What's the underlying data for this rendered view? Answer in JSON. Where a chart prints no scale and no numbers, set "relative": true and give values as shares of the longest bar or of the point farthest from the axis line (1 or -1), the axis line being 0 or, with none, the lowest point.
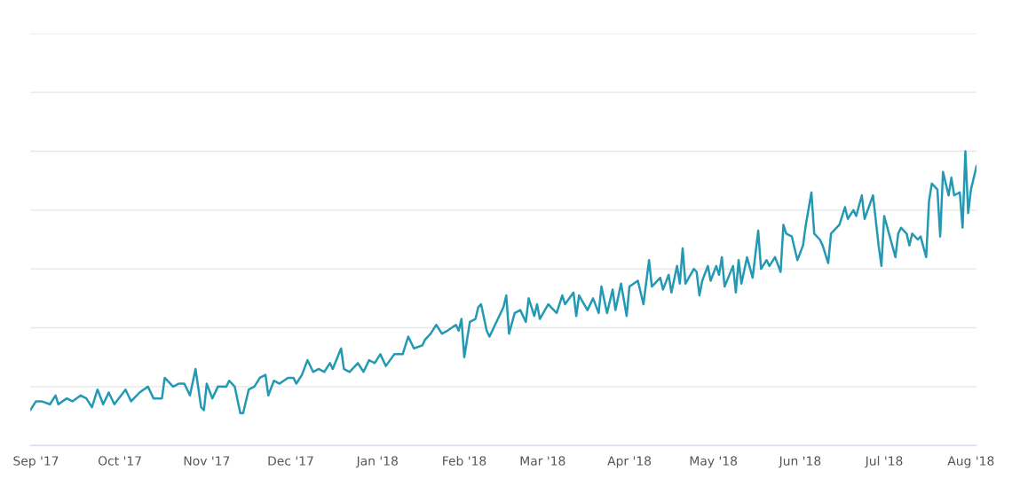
{
  "chart_data": {
    "type": "line",
    "relative": true,
    "grid": "y",
    "marker": "none",
    "line_style": "solid",
    "xlim": [
      "2017-08-30",
      "2018-08-03"
    ],
    "xticks": [
      {
        "value": "2017-09-01",
        "label": "Sep '17"
      },
      {
        "value": "2017-10-01",
        "label": "Oct '17"
      },
      {
        "value": "2017-11-01",
        "label": "Nov '17"
      },
      {
        "value": "2017-12-01",
        "label": "Dec '17"
      },
      {
        "value": "2018-01-01",
        "label": "Jan '18"
      },
      {
        "value": "2018-02-01",
        "label": "Feb '18"
      },
      {
        "value": "2018-03-01",
        "label": "Mar '18"
      },
      {
        "value": "2018-04-01",
        "label": "Apr '18"
      },
      {
        "value": "2018-05-01",
        "label": "May '18"
      },
      {
        "value": "2018-06-01",
        "label": "Jun '18"
      },
      {
        "value": "2018-07-01",
        "label": "Jul '18"
      },
      {
        "value": "2018-08-01",
        "label": "Aug '18"
      }
    ],
    "series": [
      {
        "color": "#2399b3",
        "x": [
          "2017-08-30",
          "2017-09-01",
          "2017-09-03",
          "2017-09-06",
          "2017-09-08",
          "2017-09-09",
          "2017-09-12",
          "2017-09-14",
          "2017-09-17",
          "2017-09-19",
          "2017-09-21",
          "2017-09-23",
          "2017-09-25",
          "2017-09-27",
          "2017-09-29",
          "2017-10-03",
          "2017-10-05",
          "2017-10-08",
          "2017-10-11",
          "2017-10-13",
          "2017-10-16",
          "2017-10-17",
          "2017-10-20",
          "2017-10-22",
          "2017-10-24",
          "2017-10-26",
          "2017-10-28",
          "2017-10-30",
          "2017-10-31",
          "2017-11-01",
          "2017-11-03",
          "2017-11-05",
          "2017-11-08",
          "2017-11-09",
          "2017-11-11",
          "2017-11-13",
          "2017-11-14",
          "2017-11-16",
          "2017-11-18",
          "2017-11-20",
          "2017-11-22",
          "2017-11-23",
          "2017-11-25",
          "2017-11-27",
          "2017-11-30",
          "2017-12-02",
          "2017-12-03",
          "2017-12-05",
          "2017-12-07",
          "2017-12-09",
          "2017-12-11",
          "2017-12-13",
          "2017-12-15",
          "2017-12-16",
          "2017-12-19",
          "2017-12-20",
          "2017-12-22",
          "2017-12-25",
          "2017-12-27",
          "2017-12-29",
          "2017-12-31",
          "2018-01-02",
          "2018-01-04",
          "2018-01-07",
          "2018-01-10",
          "2018-01-12",
          "2018-01-14",
          "2018-01-17",
          "2018-01-18",
          "2018-01-20",
          "2018-01-22",
          "2018-01-24",
          "2018-01-26",
          "2018-01-29",
          "2018-01-30",
          "2018-01-31",
          "2018-02-01",
          "2018-02-03",
          "2018-02-05",
          "2018-02-06",
          "2018-02-07",
          "2018-02-09",
          "2018-02-10",
          "2018-02-12",
          "2018-02-15",
          "2018-02-16",
          "2018-02-17",
          "2018-02-19",
          "2018-02-21",
          "2018-02-23",
          "2018-02-24",
          "2018-02-26",
          "2018-02-27",
          "2018-02-28",
          "2018-03-03",
          "2018-03-04",
          "2018-03-06",
          "2018-03-08",
          "2018-03-09",
          "2018-03-12",
          "2018-03-13",
          "2018-03-14",
          "2018-03-17",
          "2018-03-19",
          "2018-03-21",
          "2018-03-22",
          "2018-03-24",
          "2018-03-26",
          "2018-03-27",
          "2018-03-29",
          "2018-03-31",
          "2018-04-01",
          "2018-04-04",
          "2018-04-05",
          "2018-04-06",
          "2018-04-08",
          "2018-04-09",
          "2018-04-12",
          "2018-04-13",
          "2018-04-15",
          "2018-04-16",
          "2018-04-18",
          "2018-04-19",
          "2018-04-20",
          "2018-04-21",
          "2018-04-24",
          "2018-04-25",
          "2018-04-26",
          "2018-04-27",
          "2018-04-29",
          "2018-04-30",
          "2018-05-02",
          "2018-05-03",
          "2018-05-04",
          "2018-05-05",
          "2018-05-08",
          "2018-05-09",
          "2018-05-10",
          "2018-05-11",
          "2018-05-13",
          "2018-05-15",
          "2018-05-17",
          "2018-05-18",
          "2018-05-20",
          "2018-05-21",
          "2018-05-23",
          "2018-05-25",
          "2018-05-26",
          "2018-05-27",
          "2018-05-29",
          "2018-05-31",
          "2018-06-02",
          "2018-06-03",
          "2018-06-05",
          "2018-06-06",
          "2018-06-08",
          "2018-06-09",
          "2018-06-11",
          "2018-06-12",
          "2018-06-14",
          "2018-06-15",
          "2018-06-17",
          "2018-06-18",
          "2018-06-20",
          "2018-06-21",
          "2018-06-23",
          "2018-06-24",
          "2018-06-27",
          "2018-06-29",
          "2018-06-30",
          "2018-07-01",
          "2018-07-03",
          "2018-07-05",
          "2018-07-06",
          "2018-07-07",
          "2018-07-09",
          "2018-07-10",
          "2018-07-11",
          "2018-07-13",
          "2018-07-14",
          "2018-07-16",
          "2018-07-17",
          "2018-07-18",
          "2018-07-20",
          "2018-07-21",
          "2018-07-22",
          "2018-07-24",
          "2018-07-25",
          "2018-07-26",
          "2018-07-28",
          "2018-07-29",
          "2018-07-30",
          "2018-07-31",
          "2018-08-01",
          "2018-08-03"
        ],
        "values": [
          0.12,
          0.15,
          0.15,
          0.14,
          0.17,
          0.14,
          0.16,
          0.15,
          0.17,
          0.16,
          0.13,
          0.19,
          0.14,
          0.18,
          0.14,
          0.19,
          0.15,
          0.18,
          0.2,
          0.16,
          0.16,
          0.23,
          0.2,
          0.21,
          0.21,
          0.17,
          0.26,
          0.13,
          0.12,
          0.21,
          0.16,
          0.2,
          0.2,
          0.22,
          0.2,
          0.11,
          0.11,
          0.19,
          0.2,
          0.23,
          0.24,
          0.17,
          0.22,
          0.21,
          0.23,
          0.23,
          0.21,
          0.24,
          0.29,
          0.25,
          0.26,
          0.25,
          0.28,
          0.26,
          0.33,
          0.26,
          0.25,
          0.28,
          0.25,
          0.29,
          0.28,
          0.31,
          0.27,
          0.31,
          0.31,
          0.37,
          0.33,
          0.34,
          0.36,
          0.38,
          0.41,
          0.38,
          0.39,
          0.41,
          0.39,
          0.43,
          0.3,
          0.42,
          0.43,
          0.47,
          0.48,
          0.39,
          0.37,
          0.41,
          0.47,
          0.51,
          0.38,
          0.45,
          0.46,
          0.42,
          0.5,
          0.44,
          0.48,
          0.43,
          0.48,
          0.47,
          0.45,
          0.51,
          0.48,
          0.52,
          0.44,
          0.51,
          0.46,
          0.5,
          0.45,
          0.54,
          0.45,
          0.53,
          0.46,
          0.55,
          0.44,
          0.54,
          0.56,
          0.52,
          0.48,
          0.63,
          0.54,
          0.57,
          0.53,
          0.58,
          0.52,
          0.61,
          0.55,
          0.67,
          0.55,
          0.6,
          0.59,
          0.51,
          0.56,
          0.61,
          0.56,
          0.61,
          0.58,
          0.64,
          0.54,
          0.61,
          0.52,
          0.63,
          0.55,
          0.64,
          0.57,
          0.73,
          0.6,
          0.63,
          0.61,
          0.64,
          0.59,
          0.75,
          0.72,
          0.71,
          0.63,
          0.68,
          0.75,
          0.86,
          0.72,
          0.7,
          0.68,
          0.62,
          0.72,
          0.74,
          0.75,
          0.81,
          0.77,
          0.8,
          0.78,
          0.85,
          0.77,
          0.85,
          0.68,
          0.61,
          0.78,
          0.71,
          0.64,
          0.72,
          0.74,
          0.72,
          0.68,
          0.72,
          0.7,
          0.71,
          0.64,
          0.83,
          0.89,
          0.87,
          0.71,
          0.93,
          0.85,
          0.91,
          0.85,
          0.86,
          0.74,
          1.0,
          0.79,
          0.87,
          0.95
        ]
      }
    ]
  }
}
